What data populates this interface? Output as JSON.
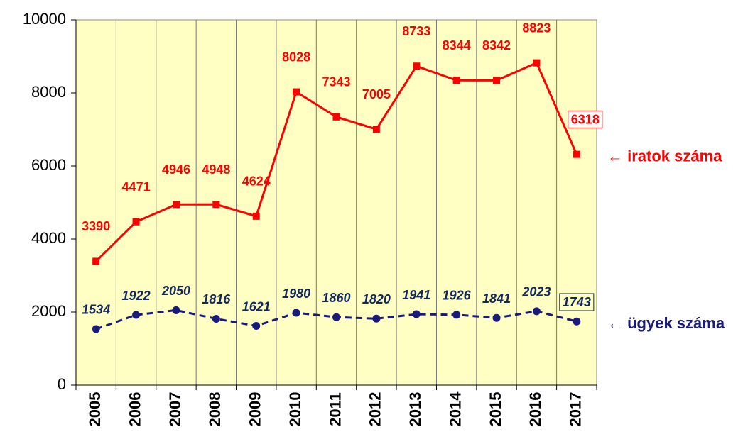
{
  "chart_data": {
    "type": "line",
    "categories": [
      "2005",
      "2006",
      "2007",
      "2008",
      "2009",
      "2010",
      "2011",
      "2012",
      "2013",
      "2014",
      "2015",
      "2016",
      "2017"
    ],
    "series": [
      {
        "name": "← iratok száma",
        "color": "#ff0000",
        "line_style": "solid",
        "marker": "square",
        "values": [
          3390,
          4471,
          4946,
          4948,
          4624,
          8028,
          7343,
          7005,
          8733,
          8344,
          8342,
          8823,
          6318
        ]
      },
      {
        "name": "← ügyek száma",
        "color": "#1a1a7a",
        "line_style": "dashed",
        "marker": "circle",
        "values": [
          1534,
          1922,
          2050,
          1816,
          1621,
          1980,
          1860,
          1820,
          1941,
          1926,
          1841,
          2023,
          1743
        ]
      }
    ],
    "ylim": [
      0,
      10000
    ],
    "yticks": [
      0,
      2000,
      4000,
      6000,
      8000,
      10000
    ],
    "grid": true,
    "background": "#ffffc4"
  }
}
